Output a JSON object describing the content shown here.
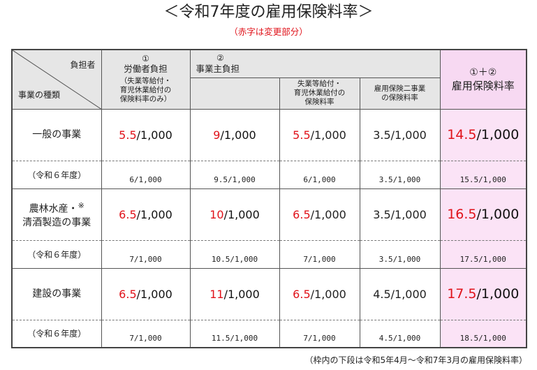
{
  "title": "＜令和7年度の雇用保険料率＞",
  "subtitle": "（赤字は変更部分）",
  "footnote": "（枠内の下段は令和5年4月～令和7年3月の雇用保険料率）",
  "colors": {
    "accent_red": "#e0121a",
    "header_gray": "#e6e6e6",
    "total_pink": "#fbe3f6"
  },
  "header": {
    "corner_top": "負担者",
    "corner_bottom": "事業の種類",
    "worker": {
      "num": "①",
      "label": "労働者負担",
      "note1": "（失業等給付・",
      "note2": "育児休業給付の",
      "note3": "保険料率のみ）"
    },
    "employer": {
      "num": "②",
      "label": "事業主負担"
    },
    "employer_sub1": {
      "line1": "失業等給付・",
      "line2": "育児休業給付の",
      "line3": "保険料率"
    },
    "employer_sub2": {
      "line1": "雇用保険二事業",
      "line2": "の保険料率"
    },
    "total": {
      "num": "①＋②",
      "label": "雇用保険料率"
    }
  },
  "rows": [
    {
      "category_line1": "一般の事業",
      "category_line2": "",
      "note": "",
      "worker_red": "5.5",
      "worker_rest": "/1,000",
      "employer_red": "9",
      "employer_rest": "/1,000",
      "sub1_red": "5.5",
      "sub1_rest": "/1,000",
      "sub2": "3.5/1,000",
      "total_red": "14.5",
      "total_rest": "/1,000",
      "prev_label": "（令和６年度）",
      "prev": [
        "6/1,000",
        "9.5/1,000",
        "6/1,000",
        "3.5/1,000",
        "15.5/1,000"
      ]
    },
    {
      "category_line1": "農林水産・",
      "category_line2": "清酒製造の事業",
      "note": "※",
      "worker_red": "6.5",
      "worker_rest": "/1,000",
      "employer_red": "10",
      "employer_rest": "/1,000",
      "sub1_red": "6.5",
      "sub1_rest": "/1,000",
      "sub2": "3.5/1,000",
      "total_red": "16.5",
      "total_rest": "/1,000",
      "prev_label": "（令和６年度）",
      "prev": [
        "7/1,000",
        "10.5/1,000",
        "7/1,000",
        "3.5/1,000",
        "17.5/1,000"
      ]
    },
    {
      "category_line1": "建設の事業",
      "category_line2": "",
      "note": "",
      "worker_red": "6.5",
      "worker_rest": "/1,000",
      "employer_red": "11",
      "employer_rest": "/1,000",
      "sub1_red": "6.5",
      "sub1_rest": "/1,000",
      "sub2": "4.5/1,000",
      "total_red": "17.5",
      "total_rest": "/1,000",
      "prev_label": "（令和６年度）",
      "prev": [
        "7/1,000",
        "11.5/1,000",
        "7/1,000",
        "4.5/1,000",
        "18.5/1,000"
      ]
    }
  ]
}
